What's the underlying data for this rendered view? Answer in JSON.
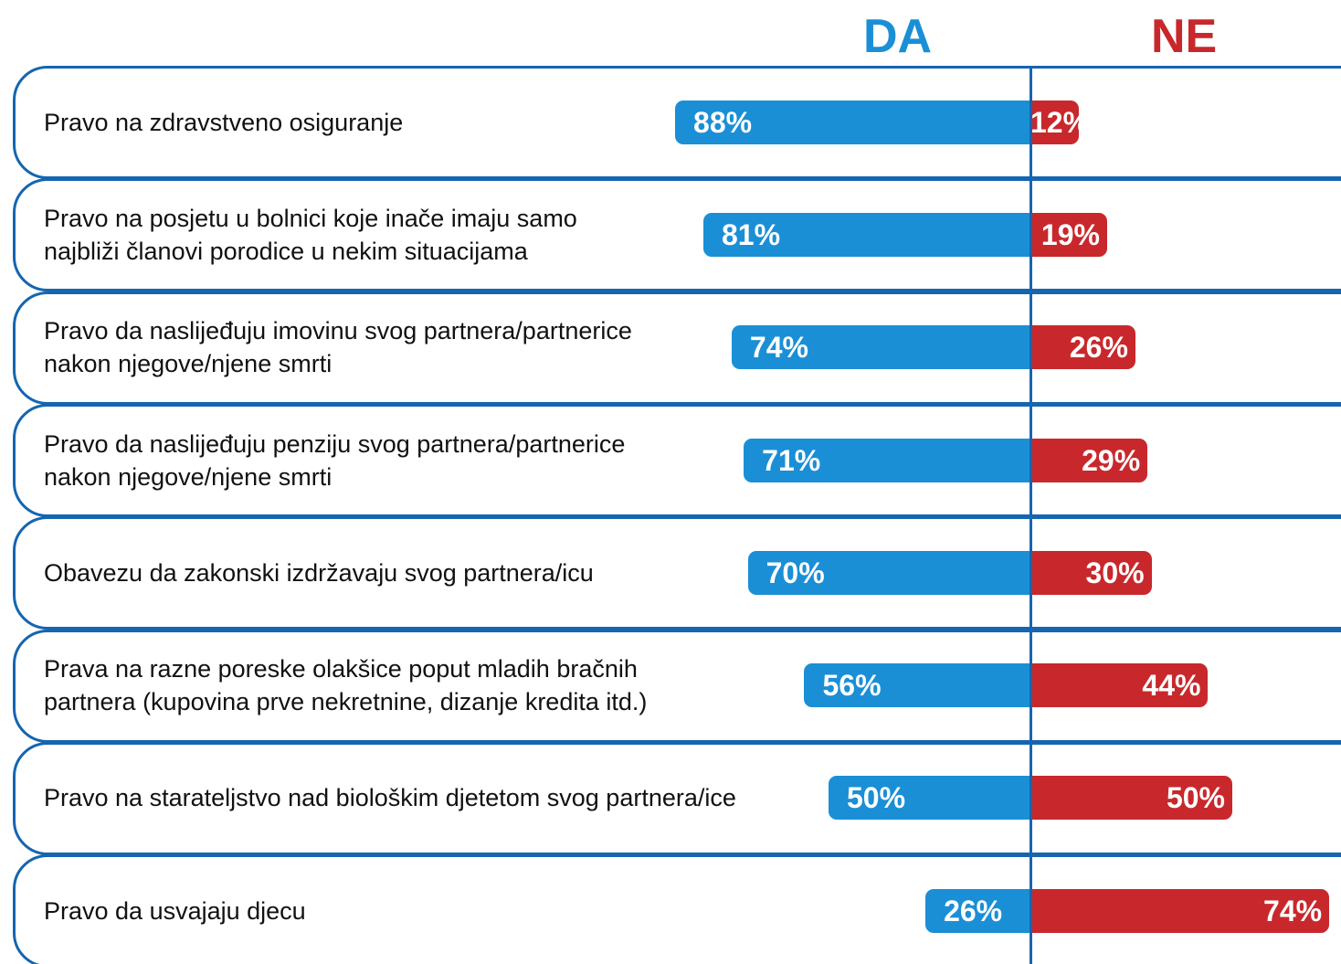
{
  "chart_data": {
    "type": "diverging_bar",
    "categories": [
      "Pravo na zdravstveno osiguranje",
      "Pravo na posjetu u bolnici koje inače imaju samo\nnajbliži članovi porodice u nekim situacijama",
      "Pravo da naslijeđuju imovinu svog partnera/partnerice\nnakon njegove/njene smrti",
      "Pravo da naslijeđuju penziju svog partnera/partnerice\nnakon njegove/njene smrti",
      "Obavezu da zakonski izdržavaju svog partnera/icu",
      "Prava na razne poreske olakšice poput mladih bračnih\npartnera (kupovina prve nekretnine, dizanje kredita itd.)",
      "Pravo na starateljstvo nad biološkim djetetom svog partnera/ice",
      "Pravo da usvajaju djecu"
    ],
    "series": [
      {
        "name": "DA",
        "color": "#1a8fd6",
        "side": "left",
        "values": [
          88,
          81,
          74,
          71,
          70,
          56,
          50,
          26
        ],
        "value_labels": [
          "88%",
          "81%",
          "74%",
          "71%",
          "70%",
          "56%",
          "50%",
          "26%"
        ]
      },
      {
        "name": "NE",
        "color": "#c8282c",
        "side": "right",
        "values": [
          12,
          19,
          26,
          29,
          30,
          44,
          50,
          74
        ],
        "value_labels": [
          "12%",
          "19%",
          "26%",
          "29%",
          "30%",
          "44%",
          "50%",
          "74%"
        ]
      }
    ]
  }
}
